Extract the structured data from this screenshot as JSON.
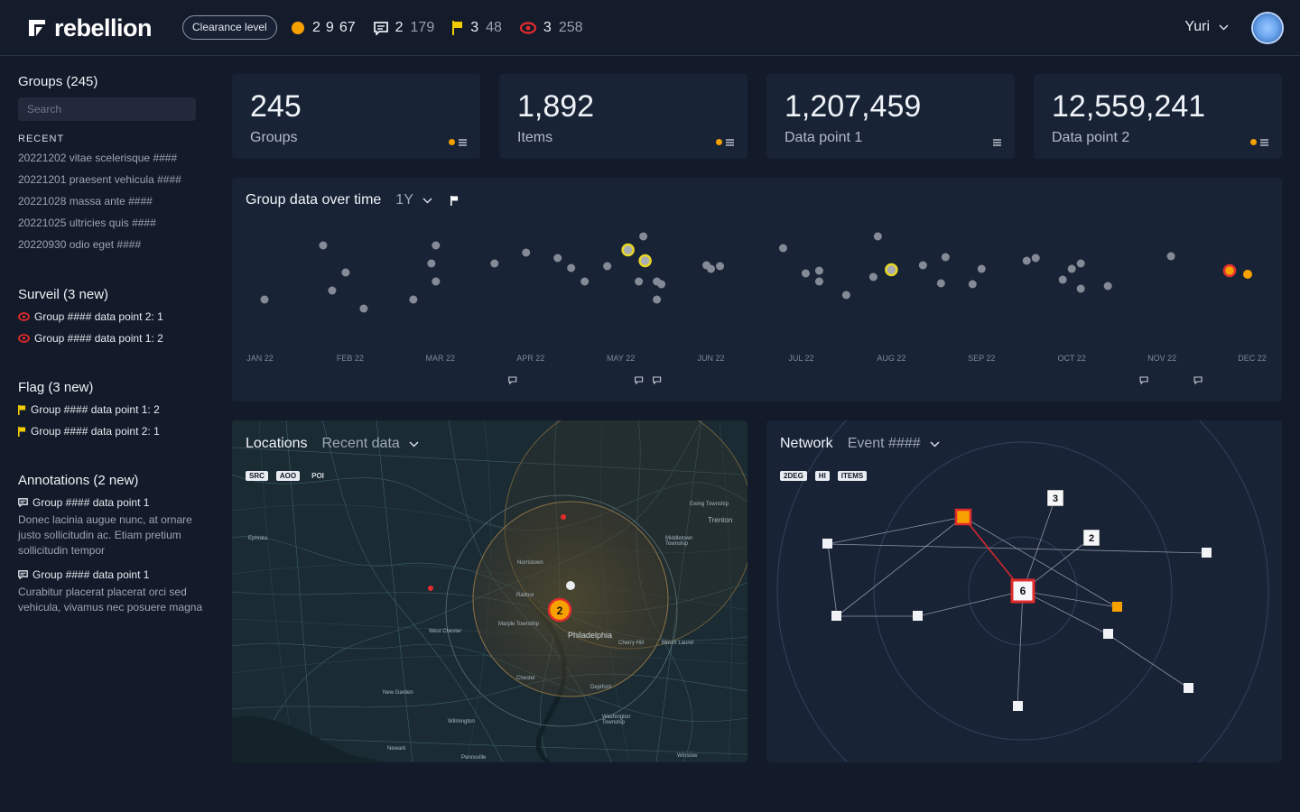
{
  "topbar": {
    "brand": "rebellion",
    "clearance_label": "Clearance level",
    "stats": [
      {
        "icon": "orange-dot-icon",
        "first": "2",
        "second": "9",
        "third": "67"
      },
      {
        "icon": "comment-icon",
        "first": "2",
        "second": "179"
      },
      {
        "icon": "flag-icon",
        "first": "3",
        "second": "48"
      },
      {
        "icon": "eye-icon",
        "first": "3",
        "second": "258"
      }
    ],
    "user_name": "Yuri"
  },
  "sidebar": {
    "groups_title": "Groups (245)",
    "search_placeholder": "Search",
    "recent_label": "RECENT",
    "recent": [
      "20221202 vitae scelerisque ####",
      "20221201 praesent vehicula ####",
      "20221028 massa ante ####",
      "20221025 ultricies quis ####",
      "20220930 odio eget ####"
    ],
    "surveil_title": "Surveil (3 new)",
    "surveil": [
      "Group #### data point 2: 1",
      "Group #### data point 1: 2"
    ],
    "flag_title": "Flag (3 new)",
    "flags": [
      "Group #### data point 1: 2",
      "Group #### data point 2: 1"
    ],
    "annotations_title": "Annotations (2 new)",
    "annotations": [
      {
        "title": "Group #### data point 1",
        "text": "Donec lacinia augue nunc, at ornare justo sollicitudin ac. Etiam pretium sollicitudin tempor"
      },
      {
        "title": "Group #### data point 1",
        "text": "Curabitur placerat placerat orci sed vehicula, vivamus nec posuere magna"
      }
    ]
  },
  "cards": [
    {
      "value": "245",
      "label": "Groups",
      "has_dot": true
    },
    {
      "value": "1,892",
      "label": "Items",
      "has_dot": true
    },
    {
      "value": "1,207,459",
      "label": "Data point 1",
      "has_dot": false
    },
    {
      "value": "12,559,241",
      "label": "Data point 2",
      "has_dot": true
    }
  ],
  "timeline": {
    "title": "Group data over time",
    "range": "1Y",
    "months": [
      "JAN 22",
      "FEB 22",
      "MAR 22",
      "APR 22",
      "MAY 22",
      "JUN 22",
      "JUL 22",
      "AUG 22",
      "SEP 22",
      "OCT 22",
      "NOV 22",
      "DEC 22"
    ]
  },
  "chart_data": {
    "type": "scatter",
    "title": "Group data over time",
    "x_axis": "month",
    "categories": [
      "JAN 22",
      "FEB 22",
      "MAR 22",
      "APR 22",
      "MAY 22",
      "JUN 22",
      "JUL 22",
      "AUG 22",
      "SEP 22",
      "OCT 22",
      "NOV 22",
      "DEC 22"
    ],
    "series": [
      {
        "kind": "default",
        "color": "#8b909a",
        "points": [
          [
            0.05,
            8
          ],
          [
            0.7,
            2
          ],
          [
            0.95,
            5
          ],
          [
            0.8,
            7
          ],
          [
            1.15,
            9
          ],
          [
            1.7,
            8
          ],
          [
            1.95,
            2
          ],
          [
            1.9,
            4
          ],
          [
            1.95,
            6
          ],
          [
            2.6,
            4
          ],
          [
            2.95,
            2.8
          ],
          [
            3.3,
            3.4
          ],
          [
            3.45,
            4.5
          ],
          [
            3.85,
            4.3
          ],
          [
            3.6,
            6
          ],
          [
            4.4,
            6
          ],
          [
            4.2,
            6
          ],
          [
            4.25,
            1
          ],
          [
            4.4,
            8
          ],
          [
            4.45,
            6.3
          ],
          [
            5.0,
            4.6
          ],
          [
            4.95,
            4.2
          ],
          [
            5.8,
            2.3
          ],
          [
            5.1,
            4.3
          ],
          [
            6.5,
            7.5
          ],
          [
            6.2,
            4.8
          ],
          [
            6.2,
            6
          ],
          [
            6.05,
            5.1
          ],
          [
            6.85,
            1
          ],
          [
            6.8,
            5.5
          ],
          [
            7.35,
            4.2
          ],
          [
            7.6,
            3.3
          ],
          [
            7.55,
            6.2
          ],
          [
            7.9,
            6.3
          ],
          [
            8.0,
            4.6
          ],
          [
            8.9,
            5.8
          ],
          [
            8.6,
            3.4
          ],
          [
            8.5,
            3.7
          ],
          [
            9.1,
            6.8
          ],
          [
            9.1,
            4
          ],
          [
            9.0,
            4.6
          ],
          [
            9.4,
            6.5
          ],
          [
            10.1,
            3.2
          ]
        ]
      },
      {
        "kind": "highlight-yellow",
        "color": "#e7d726",
        "points": [
          [
            4.08,
            2.5
          ],
          [
            4.27,
            3.7
          ],
          [
            7.0,
            4.7
          ]
        ]
      },
      {
        "kind": "highlight-red",
        "color": "#e53131",
        "points": [
          [
            10.75,
            4.8
          ]
        ]
      },
      {
        "kind": "orange",
        "color": "#f6a100",
        "points": [
          [
            10.95,
            5.2
          ]
        ]
      }
    ],
    "annotation_markers_months": [
      2.8,
      4.2,
      4.4,
      9.8,
      10.4
    ]
  },
  "locations": {
    "title": "Locations",
    "filter": "Recent data",
    "chips": [
      "SRC",
      "AOO",
      "POI"
    ],
    "cluster_count": "2",
    "places": [
      "Ewing Township",
      "Trenton",
      "Middletown Township",
      "Ephrata",
      "Norristown",
      "Radnor",
      "Marple Township",
      "Philadelphia",
      "Cherry Hill",
      "Mount Laurel",
      "West Chester",
      "Chester",
      "Deptford",
      "Washington Township",
      "New Garden",
      "Wilmington",
      "Newark",
      "Pennsville",
      "Winslow"
    ]
  },
  "network": {
    "title": "Network",
    "filter": "Event ####",
    "chips": [
      "2DEG",
      "HI",
      "ITEMS"
    ],
    "node_labels": {
      "center": "6",
      "a": "3",
      "b": "2"
    }
  }
}
